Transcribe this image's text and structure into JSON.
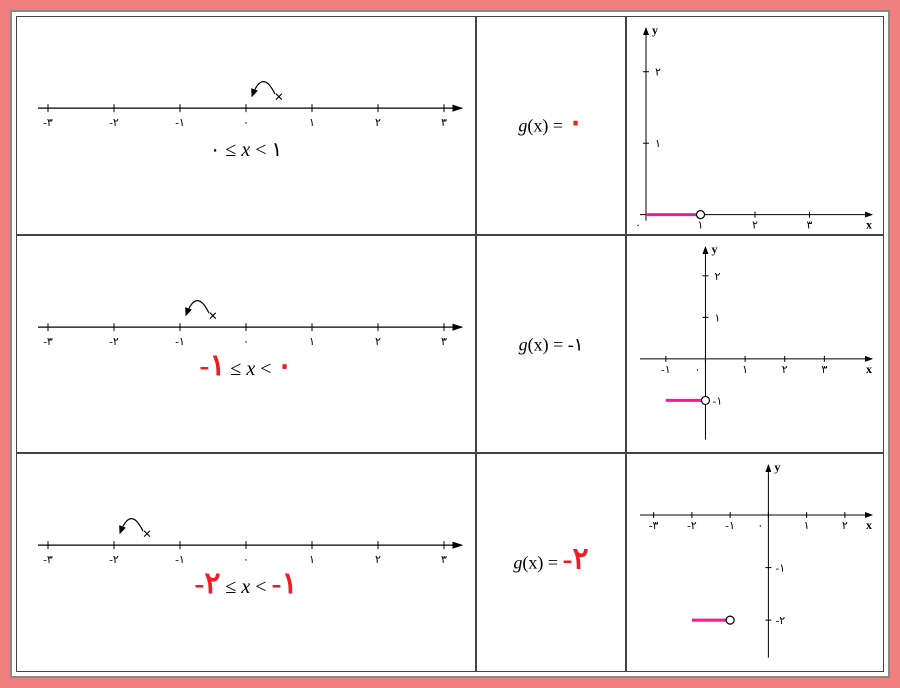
{
  "layout": {
    "outer_width": 900,
    "outer_height": 688,
    "frame_border_color": "#888888",
    "cell_border_color": "#444444",
    "background": "#f08080",
    "page_bg": "#ffffff",
    "cols": [
      460,
      150,
      258
    ],
    "rows": 3
  },
  "colors": {
    "axis": "#000000",
    "segment": "#ff1493",
    "highlight": "#ee1c25",
    "hollow_fill": "#ffffff"
  },
  "numberline": {
    "xmin": -3,
    "xmax": 3,
    "tick_step": 1,
    "tick_labels": [
      "-۳",
      "-۲",
      "-۱",
      "۰",
      "۱",
      "۲",
      "۳"
    ],
    "tick_fontsize": 11
  },
  "rows_data": [
    {
      "interval": {
        "lower": "۰",
        "upper": "۱",
        "lower_red": false,
        "upper_red": false,
        "label": "۰ ≤ x < ۱"
      },
      "x_mark_at": 0.5,
      "curve_from": 0.5,
      "curve_to": 0,
      "g_value": {
        "text": "۰",
        "red": true,
        "prefix": "g(x) = "
      },
      "graph": {
        "xlim": [
          0,
          4
        ],
        "ylim": [
          0,
          2.5
        ],
        "xticks": [
          {
            "v": 0,
            "l": "۰"
          },
          {
            "v": 1,
            "l": "۱"
          },
          {
            "v": 2,
            "l": "۲"
          },
          {
            "v": 3,
            "l": "۳"
          }
        ],
        "yticks": [
          {
            "v": 1,
            "l": "۱"
          },
          {
            "v": 2,
            "l": "۲"
          }
        ],
        "segment": {
          "x0": 0,
          "x1": 1,
          "y": 0,
          "open_at": "x1"
        },
        "y_axis_at_x": 0,
        "x_axis_at_y": 0
      }
    },
    {
      "interval": {
        "lower": "-۱",
        "upper": "۰",
        "lower_red": true,
        "upper_red": true,
        "label": "-۱ ≤ x < ۰"
      },
      "x_mark_at": -0.5,
      "curve_from": -0.5,
      "curve_to": -1,
      "g_value": {
        "text": "-۱",
        "red": false,
        "prefix": "g(x) = "
      },
      "graph": {
        "xlim": [
          -1.5,
          4
        ],
        "ylim": [
          -1.8,
          2.5
        ],
        "xticks": [
          {
            "v": -1,
            "l": "-۱"
          },
          {
            "v": 0,
            "l": "۰"
          },
          {
            "v": 1,
            "l": "۱"
          },
          {
            "v": 2,
            "l": "۲"
          },
          {
            "v": 3,
            "l": "۳"
          }
        ],
        "yticks": [
          {
            "v": 1,
            "l": "۱"
          },
          {
            "v": 2,
            "l": "۲"
          },
          {
            "v": -1,
            "l": "-۱"
          }
        ],
        "segment": {
          "x0": -1,
          "x1": 0,
          "y": -1,
          "open_at": "x1"
        },
        "y_axis_at_x": 0,
        "x_axis_at_y": 0
      }
    },
    {
      "interval": {
        "lower": "-۲",
        "upper": "-۱",
        "lower_red": true,
        "upper_red": true,
        "label": "-۲ ≤ x < -۱"
      },
      "x_mark_at": -1.5,
      "curve_from": -1.5,
      "curve_to": -2,
      "g_value": {
        "text": "-۲",
        "red": true,
        "prefix": "g(x) = "
      },
      "graph": {
        "xlim": [
          -3.2,
          2.5
        ],
        "ylim": [
          -2.6,
          0.8
        ],
        "xticks": [
          {
            "v": -3,
            "l": "-۳"
          },
          {
            "v": -2,
            "l": "-۲"
          },
          {
            "v": -1,
            "l": "-۱"
          },
          {
            "v": 0,
            "l": "۰"
          },
          {
            "v": 1,
            "l": "۱"
          },
          {
            "v": 2,
            "l": "۲"
          }
        ],
        "yticks": [
          {
            "v": -1,
            "l": "-۱"
          },
          {
            "v": -2,
            "l": "-۲"
          }
        ],
        "segment": {
          "x0": -2,
          "x1": -1,
          "y": -2,
          "open_at": "x1"
        },
        "y_axis_at_x": 0,
        "x_axis_at_y": 0
      }
    }
  ],
  "labels": {
    "x": "x",
    "y": "y",
    "le": "≤",
    "lt": "<"
  }
}
